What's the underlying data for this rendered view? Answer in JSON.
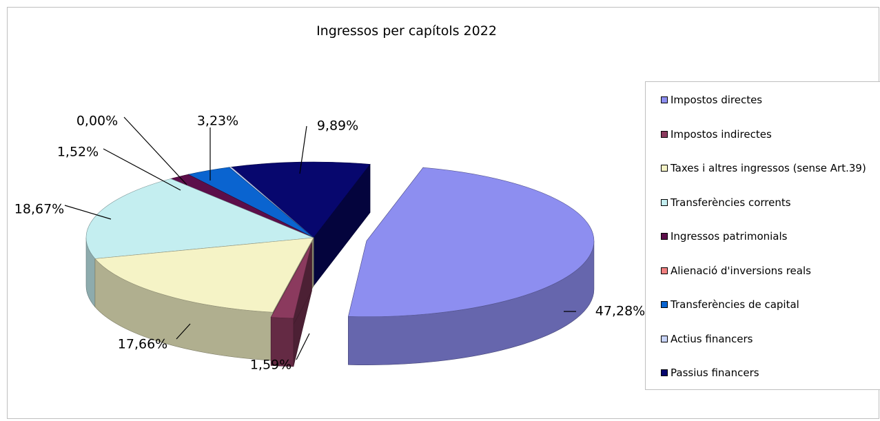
{
  "chart_data": {
    "type": "pie",
    "title": "Ingressos per capítols 2022",
    "slices": [
      {
        "name": "Impostos directes",
        "value": 47.28,
        "label": "47,28%",
        "color": "#8d8ef0",
        "exploded": true
      },
      {
        "name": "Impostos indirectes",
        "value": 1.59,
        "label": "1,59%",
        "color": "#8b3a5e",
        "exploded": true
      },
      {
        "name": "Taxes i altres ingressos (sense Art.39)",
        "value": 17.66,
        "label": "17,66%",
        "color": "#f5f3c6",
        "exploded": false
      },
      {
        "name": "Transferències corrents",
        "value": 18.67,
        "label": "18,67%",
        "color": "#c4eef0",
        "exploded": false
      },
      {
        "name": "Ingressos patrimonials",
        "value": 1.52,
        "label": "1,52%",
        "color": "#5c0e4a",
        "exploded": false
      },
      {
        "name": "Alienació d'inversions reals",
        "value": 0.0,
        "label": "0,00%",
        "color": "#f08080",
        "exploded": false
      },
      {
        "name": "Transferències de capital",
        "value": 3.23,
        "label": "3,23%",
        "color": "#0a64d0",
        "exploded": false
      },
      {
        "name": "Actius financers",
        "value": 0.16,
        "label": "",
        "color": "#c8d4f8",
        "exploded": false
      },
      {
        "name": "Passius financers",
        "value": 9.89,
        "label": "9,89%",
        "color": "#07076e",
        "exploded": false
      }
    ],
    "legend_position": "right"
  }
}
